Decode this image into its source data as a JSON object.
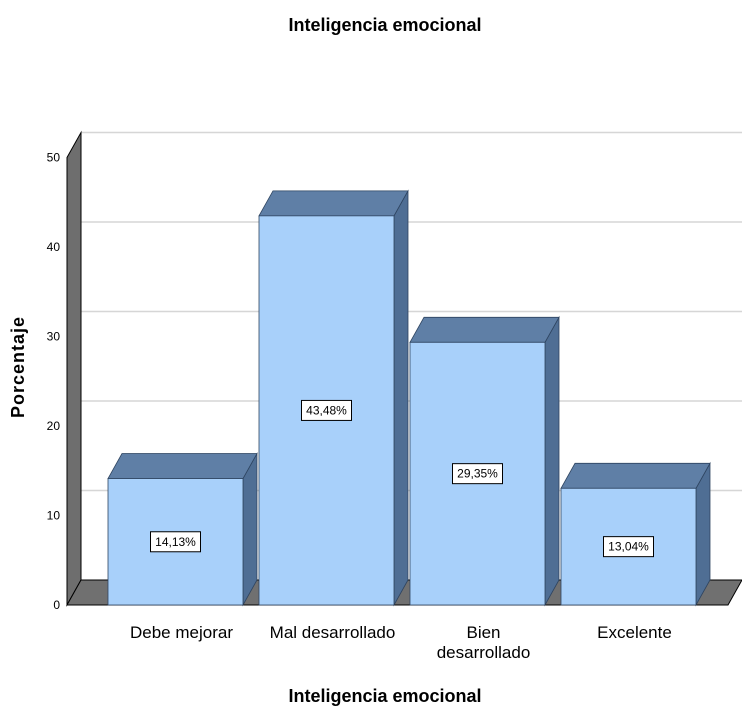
{
  "chart_data": {
    "type": "bar",
    "title": "Inteligencia emocional",
    "xlabel": "Inteligencia emocional",
    "ylabel": "Porcentaje",
    "categories": [
      "Debe mejorar",
      "Mal desarrollado",
      "Bien desarrollado",
      "Excelente"
    ],
    "values": [
      14.13,
      43.48,
      29.35,
      13.04
    ],
    "data_labels": [
      "14,13%",
      "43,48%",
      "29,35%",
      "13,04%"
    ],
    "ylim": [
      0,
      50
    ],
    "yticks": [
      "0",
      "10",
      "20",
      "30",
      "40",
      "50"
    ],
    "grid": true,
    "style": "3d",
    "colors": {
      "bar_front": "#a8d0fa",
      "bar_top": "#5f7fa6",
      "bar_side": "#4f6e94",
      "floor": "#707070",
      "wall": "#6e6e6e",
      "grid": "#d6d6d6"
    }
  }
}
